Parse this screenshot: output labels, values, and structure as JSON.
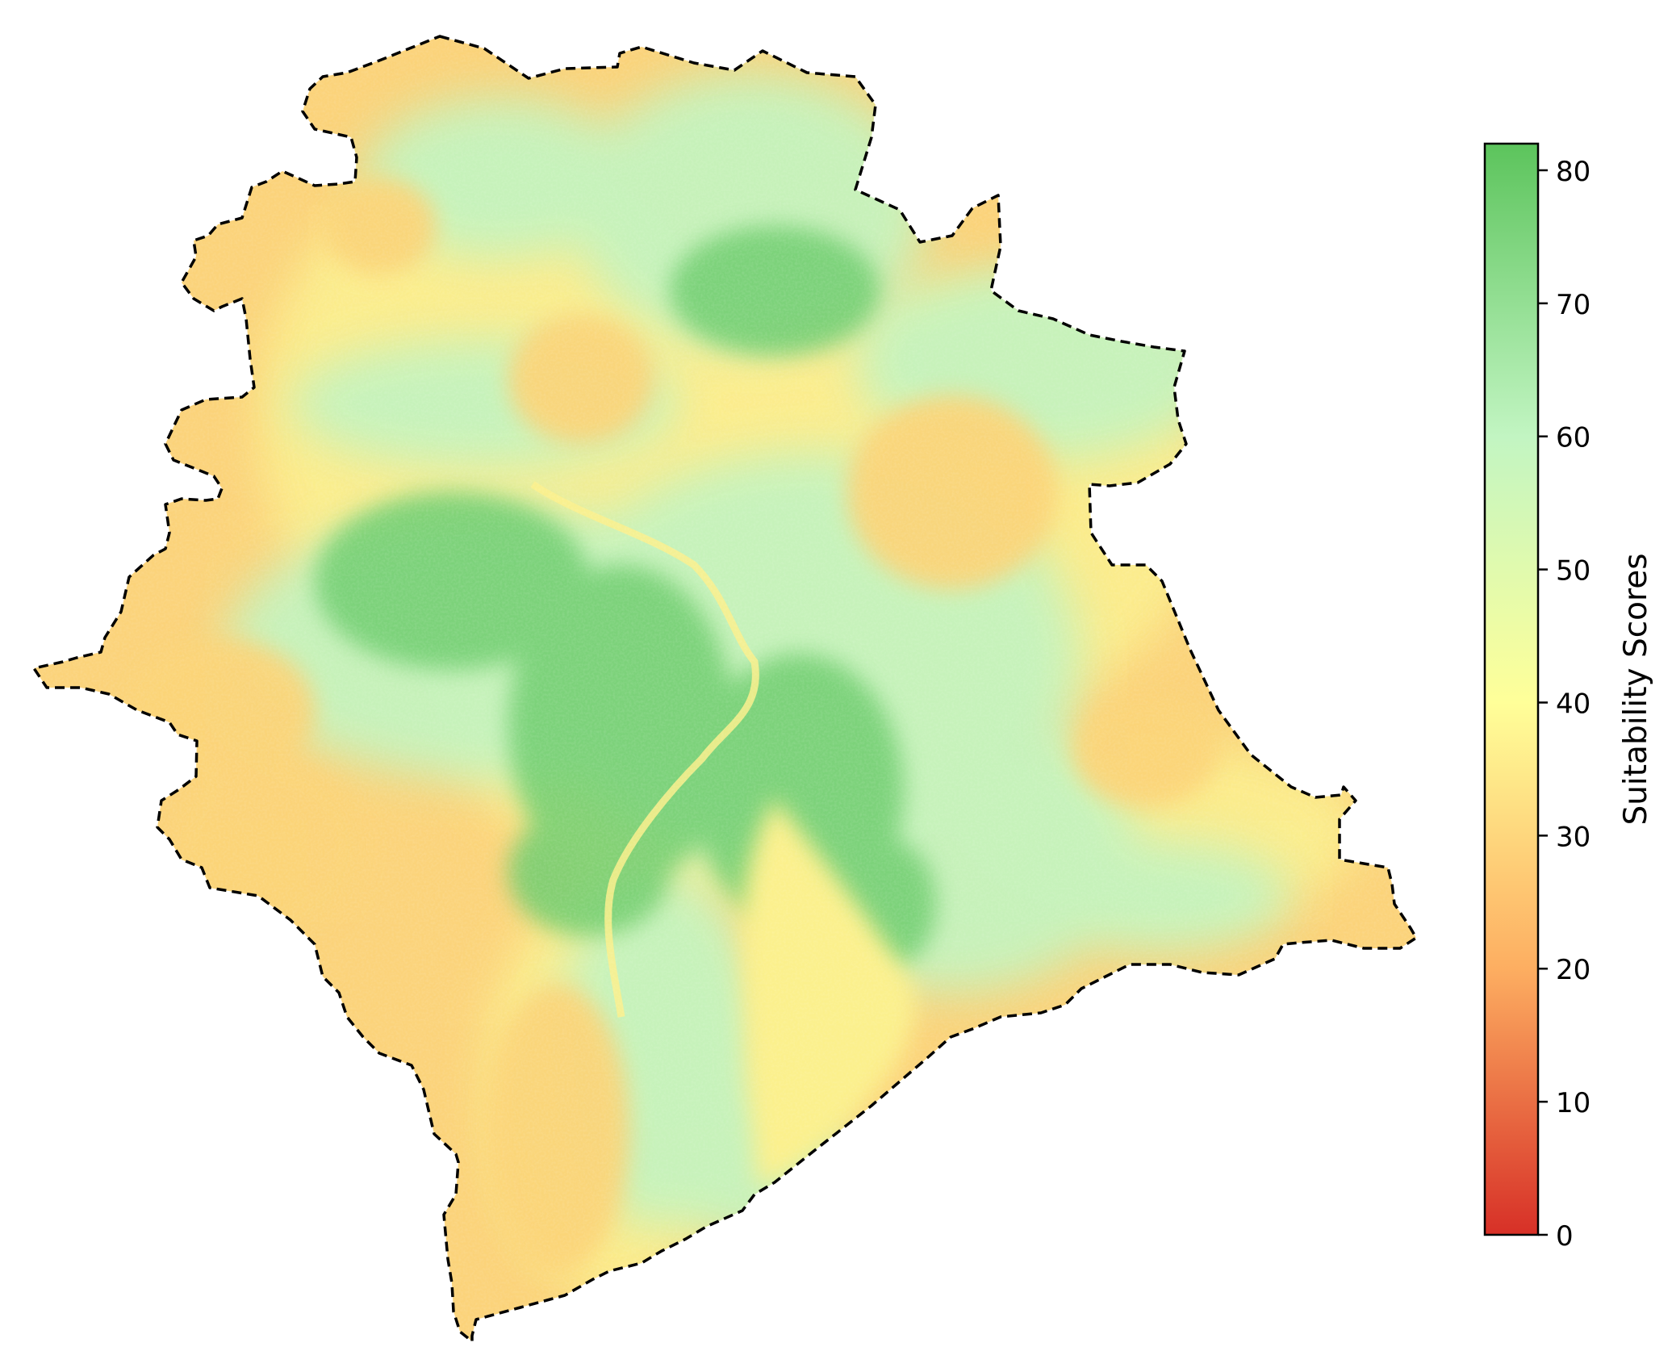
{
  "map": {
    "colors": {
      "boundary": "#000000",
      "region_base": "#fbd37a"
    }
  },
  "colorbar": {
    "label": "Suitability Scores",
    "min": 0,
    "max": 82,
    "ticks": [
      "0",
      "10",
      "20",
      "30",
      "40",
      "50",
      "60",
      "70",
      "80"
    ],
    "tick_values": [
      0,
      10,
      20,
      30,
      40,
      50,
      60,
      70,
      80
    ],
    "colormap": [
      {
        "value": 0,
        "color": "#d73027"
      },
      {
        "value": 20,
        "color": "#fdae61"
      },
      {
        "value": 40,
        "color": "#ffff99"
      },
      {
        "value": 60,
        "color": "#c2f5c2"
      },
      {
        "value": 82,
        "color": "#5cc45c"
      }
    ]
  }
}
